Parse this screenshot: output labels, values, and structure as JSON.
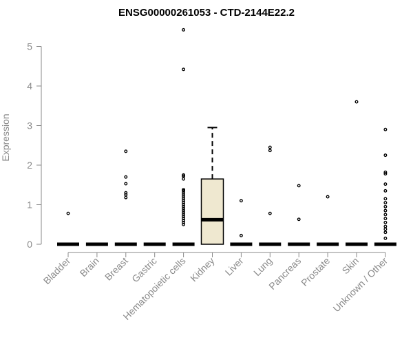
{
  "chart_data": {
    "type": "box",
    "title": "ENSG00000261053 - CTD-2144E22.2",
    "xlabel": "",
    "ylabel": "Expression",
    "ylim": [
      0,
      5.5
    ],
    "yticks": [
      0,
      1,
      2,
      3,
      4,
      5
    ],
    "grid": false,
    "box_fill": "#efe8d0",
    "categories": [
      "Bladder",
      "Brain",
      "Breast",
      "Gastric",
      "Hematopoietic cells",
      "Kidney",
      "Liver",
      "Lung",
      "Pancreas",
      "Prostate",
      "Skin",
      "Unknown / Other"
    ],
    "boxes": [
      {
        "q1": 0,
        "median": 0,
        "q3": 0,
        "whisker_low": 0,
        "whisker_high": 0,
        "outliers": [
          0.78
        ]
      },
      {
        "q1": 0,
        "median": 0,
        "q3": 0,
        "whisker_low": 0,
        "whisker_high": 0,
        "outliers": []
      },
      {
        "q1": 0,
        "median": 0,
        "q3": 0,
        "whisker_low": 0,
        "whisker_high": 0,
        "outliers": [
          2.35,
          1.7,
          1.53,
          1.3,
          1.25,
          1.18
        ]
      },
      {
        "q1": 0,
        "median": 0,
        "q3": 0,
        "whisker_low": 0,
        "whisker_high": 0,
        "outliers": []
      },
      {
        "q1": 0,
        "median": 0,
        "q3": 0,
        "whisker_low": 0,
        "whisker_high": 0,
        "outliers": [
          5.42,
          4.42,
          1.75,
          1.72,
          1.65,
          1.38,
          1.35,
          1.3,
          1.25,
          1.2,
          1.15,
          1.1,
          1.05,
          1.0,
          0.95,
          0.9,
          0.85,
          0.8,
          0.75,
          0.7,
          0.65,
          0.6,
          0.55,
          0.5
        ]
      },
      {
        "q1": 0,
        "median": 0.62,
        "q3": 1.65,
        "whisker_low": 0,
        "whisker_high": 2.95,
        "outliers": []
      },
      {
        "q1": 0,
        "median": 0,
        "q3": 0,
        "whisker_low": 0,
        "whisker_high": 0,
        "outliers": [
          1.1,
          0.22
        ]
      },
      {
        "q1": 0,
        "median": 0,
        "q3": 0,
        "whisker_low": 0,
        "whisker_high": 0,
        "outliers": [
          2.45,
          2.37,
          0.78
        ]
      },
      {
        "q1": 0,
        "median": 0,
        "q3": 0,
        "whisker_low": 0,
        "whisker_high": 0,
        "outliers": [
          1.48,
          0.63
        ]
      },
      {
        "q1": 0,
        "median": 0,
        "q3": 0,
        "whisker_low": 0,
        "whisker_high": 0,
        "outliers": [
          1.2
        ]
      },
      {
        "q1": 0,
        "median": 0,
        "q3": 0,
        "whisker_low": 0,
        "whisker_high": 0,
        "outliers": [
          3.6
        ]
      },
      {
        "q1": 0,
        "median": 0,
        "q3": 0,
        "whisker_low": 0,
        "whisker_high": 0,
        "outliers": [
          2.9,
          2.25,
          1.82,
          1.78,
          1.52,
          1.35,
          1.15,
          1.05,
          0.95,
          0.85,
          0.75,
          0.65,
          0.55,
          0.45,
          0.38,
          0.3,
          0.15
        ]
      }
    ]
  }
}
